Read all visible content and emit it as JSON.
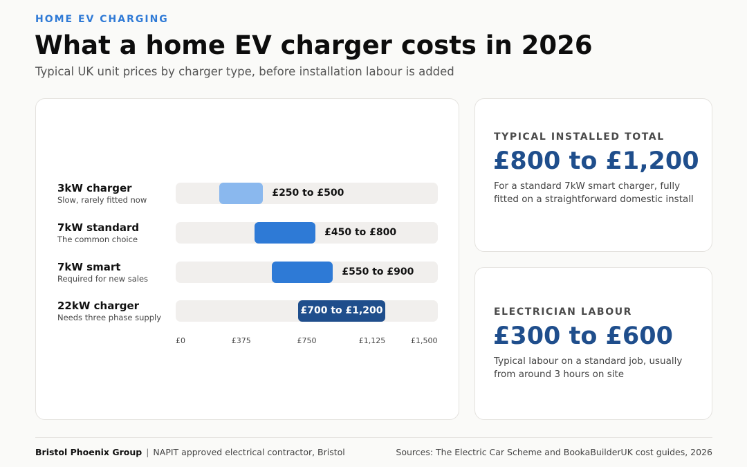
{
  "header": {
    "kicker": "HOME EV CHARGING",
    "title": "What a home EV charger costs in 2026",
    "subtitle": "Typical UK unit prices by charger type, before installation labour is added"
  },
  "chart_data": {
    "type": "bar",
    "orientation": "horizontal-range",
    "title": "",
    "xlabel": "",
    "ylabel": "",
    "xlim": [
      0,
      1500
    ],
    "grid": false,
    "tick_labels": [
      "£0",
      "£375",
      "£750",
      "£1,125",
      "£1,500"
    ],
    "tick_values": [
      0,
      375,
      750,
      1125,
      1500
    ],
    "rows": [
      {
        "name": "3kW charger",
        "note": "Slow, rarely fitted now",
        "low": 250,
        "high": 500,
        "label": "£250 to £500",
        "color": "#8ab8ee",
        "label_inside": false
      },
      {
        "name": "7kW standard",
        "note": "The common choice",
        "low": 450,
        "high": 800,
        "label": "£450 to £800",
        "color": "#2e7ad6",
        "label_inside": false
      },
      {
        "name": "7kW smart",
        "note": "Required for new sales",
        "low": 550,
        "high": 900,
        "label": "£550 to £900",
        "color": "#2e7ad6",
        "label_inside": false
      },
      {
        "name": "22kW charger",
        "note": "Needs three phase supply",
        "low": 700,
        "high": 1200,
        "label": "£700 to £1,200",
        "color": "#1f4e8c",
        "label_inside": true
      }
    ]
  },
  "stats": [
    {
      "label": "TYPICAL INSTALLED TOTAL",
      "value": "£800 to £1,200",
      "description": "For a standard 7kW smart charger, fully fitted on a straightforward domestic install"
    },
    {
      "label": "ELECTRICIAN LABOUR",
      "value": "£300 to £600",
      "description": "Typical labour on a standard job, usually from around 3 hours on site"
    }
  ],
  "footer": {
    "org": "Bristol Phoenix Group",
    "separator": "|",
    "tagline": "NAPIT approved electrical contractor, Bristol",
    "sources": "Sources: The Electric Car Scheme and BookaBuilderUK cost guides, 2026"
  },
  "colors": {
    "accent": "#2f7ad6",
    "stat_value": "#1f4e8c",
    "track": "#f1efed"
  }
}
